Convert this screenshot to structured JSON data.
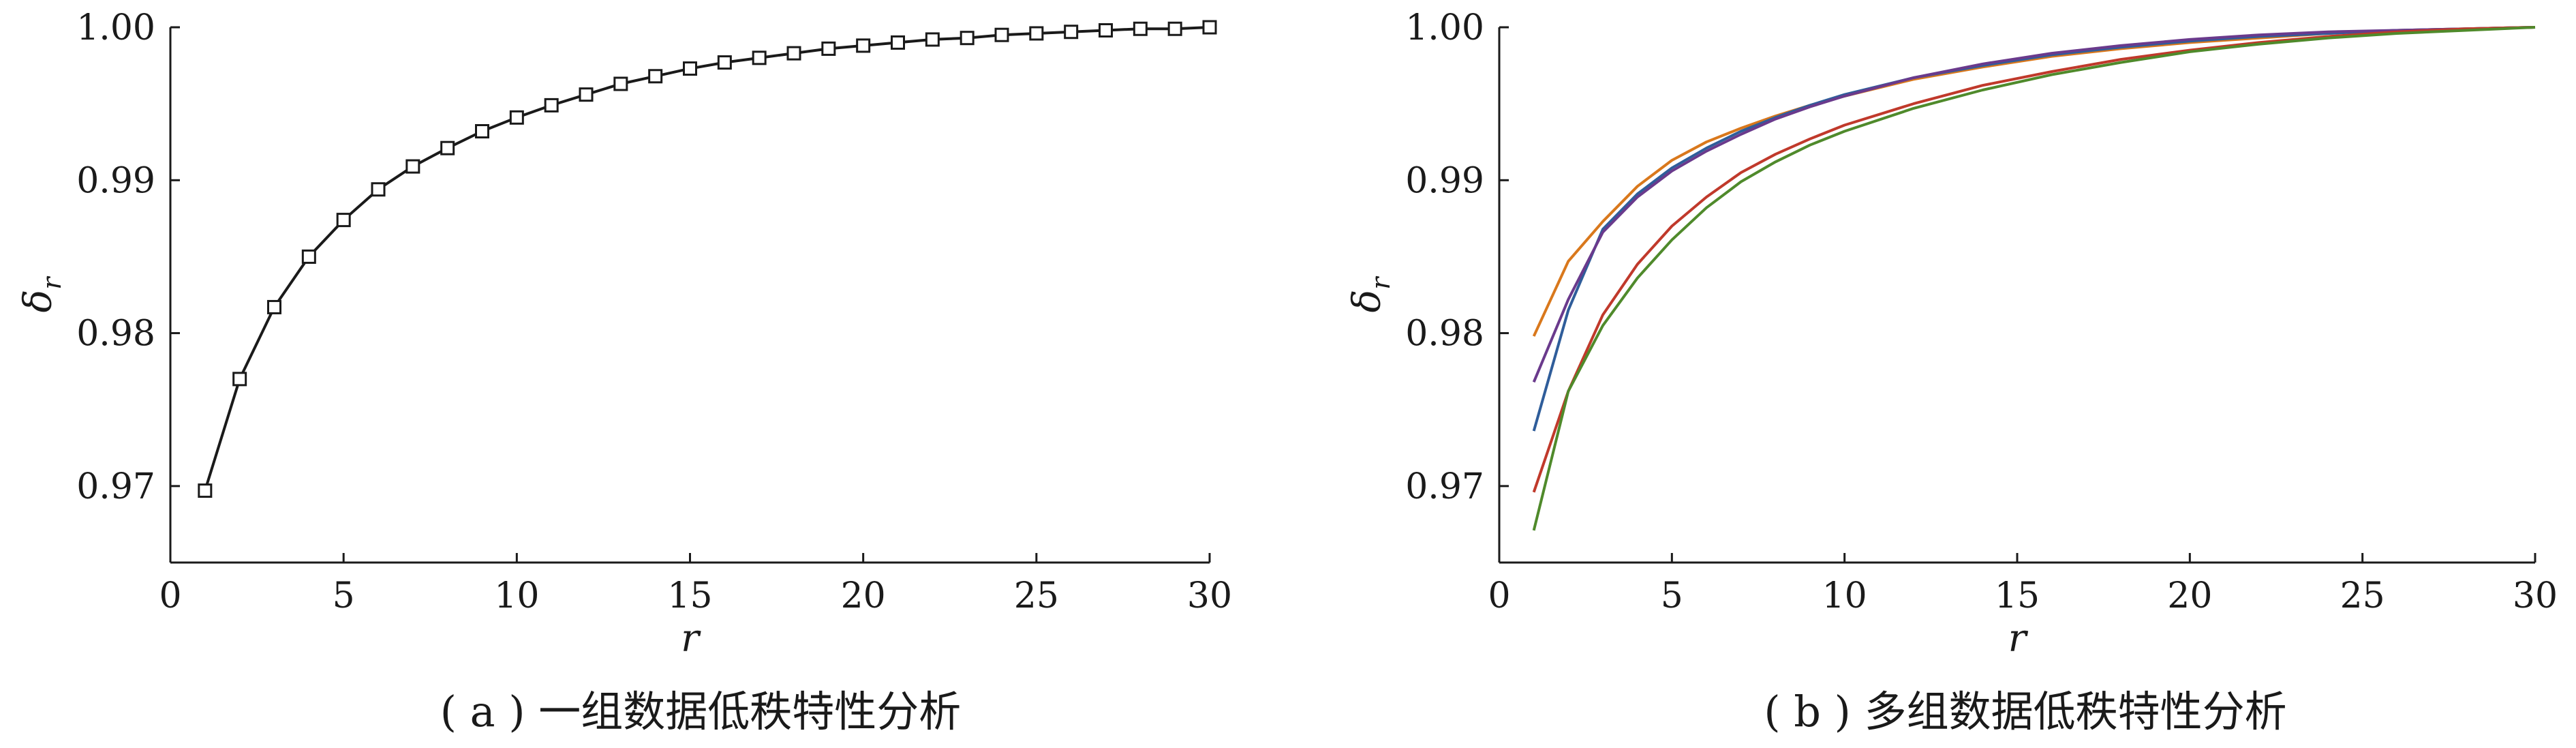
{
  "chart_data": [
    {
      "type": "line",
      "caption": "( a ) 一组数据低秩特性分析",
      "xlabel": "r",
      "ylabel": "δ",
      "ylabel_sub": "r",
      "xlim": [
        0,
        30
      ],
      "ylim": [
        0.965,
        1.0
      ],
      "xticks": [
        0,
        5,
        10,
        15,
        20,
        25,
        30
      ],
      "xtick_labels": [
        "0",
        "5",
        "10",
        "15",
        "20",
        "25",
        "30"
      ],
      "yticks": [
        0.97,
        0.98,
        0.99,
        1.0
      ],
      "ytick_labels": [
        "0.97",
        "0.98",
        "0.99",
        "1.00"
      ],
      "grid": false,
      "marker": "square",
      "series": [
        {
          "color": "#1a1a1a",
          "x": [
            1,
            2,
            3,
            4,
            5,
            6,
            7,
            8,
            9,
            10,
            11,
            12,
            13,
            14,
            15,
            16,
            17,
            18,
            19,
            20,
            21,
            22,
            23,
            24,
            25,
            26,
            27,
            28,
            29,
            30
          ],
          "y": [
            0.9697,
            0.977,
            0.9817,
            0.985,
            0.9874,
            0.9894,
            0.9909,
            0.9921,
            0.9932,
            0.9941,
            0.9949,
            0.9956,
            0.9963,
            0.9968,
            0.9973,
            0.9977,
            0.998,
            0.9983,
            0.9986,
            0.9988,
            0.999,
            0.9992,
            0.9993,
            0.9995,
            0.9996,
            0.9997,
            0.9998,
            0.9999,
            0.9999,
            1.0
          ]
        }
      ]
    },
    {
      "type": "line",
      "caption": "( b ) 多组数据低秩特性分析",
      "xlabel": "r",
      "ylabel": "δ",
      "ylabel_sub": "r",
      "xlim": [
        0,
        30
      ],
      "ylim": [
        0.965,
        1.0
      ],
      "xticks": [
        0,
        5,
        10,
        15,
        20,
        25,
        30
      ],
      "xtick_labels": [
        "0",
        "5",
        "10",
        "15",
        "20",
        "25",
        "30"
      ],
      "yticks": [
        0.97,
        0.98,
        0.99,
        1.0
      ],
      "ytick_labels": [
        "0.97",
        "0.98",
        "0.99",
        "1.00"
      ],
      "grid": false,
      "series": [
        {
          "color": "#d9781c",
          "x": [
            1,
            2,
            3,
            4,
            5,
            6,
            7,
            8,
            9,
            10,
            12,
            14,
            16,
            18,
            20,
            22,
            24,
            26,
            28,
            30
          ],
          "y": [
            0.9798,
            0.9847,
            0.9873,
            0.9896,
            0.9913,
            0.9925,
            0.9934,
            0.9942,
            0.9949,
            0.9955,
            0.9966,
            0.9974,
            0.9981,
            0.9986,
            0.999,
            0.9993,
            0.9996,
            0.9998,
            0.9999,
            1.0
          ]
        },
        {
          "color": "#2f5d9a",
          "x": [
            1,
            2,
            3,
            4,
            5,
            6,
            7,
            8,
            9,
            10,
            12,
            14,
            16,
            18,
            20,
            22,
            24,
            26,
            28,
            30
          ],
          "y": [
            0.9736,
            0.9815,
            0.9868,
            0.9891,
            0.9908,
            0.9921,
            0.9932,
            0.9941,
            0.9949,
            0.9956,
            0.9967,
            0.9975,
            0.9982,
            0.9987,
            0.9991,
            0.9994,
            0.9996,
            0.9998,
            0.9999,
            1.0
          ]
        },
        {
          "color": "#6a3a8c",
          "x": [
            1,
            2,
            3,
            4,
            5,
            6,
            7,
            8,
            9,
            10,
            12,
            14,
            16,
            18,
            20,
            22,
            24,
            26,
            28,
            30
          ],
          "y": [
            0.9768,
            0.9822,
            0.9866,
            0.9889,
            0.9906,
            0.9919,
            0.993,
            0.994,
            0.9948,
            0.9955,
            0.9967,
            0.9976,
            0.9983,
            0.9988,
            0.9992,
            0.9995,
            0.9997,
            0.9998,
            0.9999,
            1.0
          ]
        },
        {
          "color": "#c0392b",
          "x": [
            1,
            2,
            3,
            4,
            5,
            6,
            7,
            8,
            9,
            10,
            12,
            14,
            16,
            18,
            20,
            22,
            24,
            26,
            28,
            30
          ],
          "y": [
            0.9696,
            0.9762,
            0.9812,
            0.9845,
            0.987,
            0.9889,
            0.9905,
            0.9917,
            0.9927,
            0.9936,
            0.995,
            0.9962,
            0.9971,
            0.9979,
            0.9985,
            0.999,
            0.9994,
            0.9997,
            0.9999,
            1.0
          ]
        },
        {
          "color": "#4f8a2b",
          "x": [
            1,
            2,
            3,
            4,
            5,
            6,
            7,
            8,
            9,
            10,
            12,
            14,
            16,
            18,
            20,
            22,
            24,
            26,
            28,
            30
          ],
          "y": [
            0.9671,
            0.9762,
            0.9805,
            0.9836,
            0.9861,
            0.9882,
            0.9899,
            0.9912,
            0.9923,
            0.9932,
            0.9947,
            0.9959,
            0.9969,
            0.9977,
            0.9984,
            0.9989,
            0.9993,
            0.9996,
            0.9998,
            1.0
          ]
        }
      ]
    }
  ]
}
